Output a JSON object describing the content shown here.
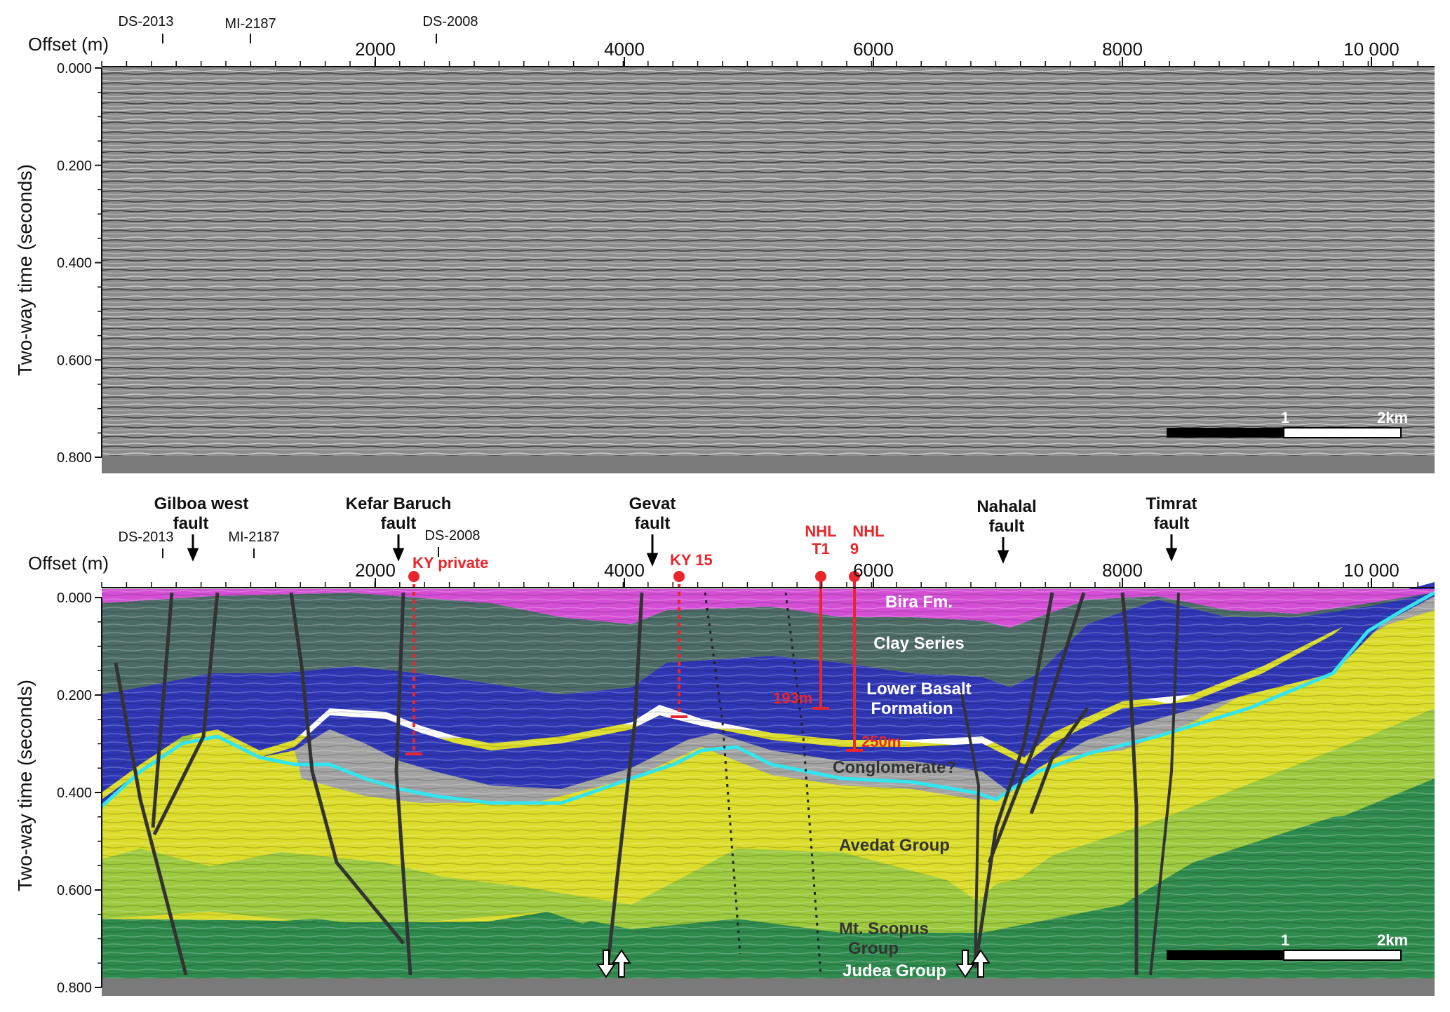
{
  "top_panel": {
    "xlabel": "Offset (m)",
    "ylabel": "Two-way time (seconds)",
    "x_ticks": [
      "2000",
      "4000",
      "6000",
      "8000",
      "10 000"
    ],
    "y_ticks": [
      "0.000",
      "0.200",
      "0.400",
      "0.600",
      "0.800"
    ],
    "line_markers": [
      "DS-2013",
      "MI-2187",
      "DS-2008"
    ],
    "scalebar": {
      "mid": "1",
      "end": "2km"
    }
  },
  "bottom_panel": {
    "xlabel": "Offset (m)",
    "ylabel": "Two-way time (seconds)",
    "x_ticks": [
      "2000",
      "4000",
      "6000",
      "8000",
      "10 000"
    ],
    "y_ticks": [
      "0.000",
      "0.200",
      "0.400",
      "0.600",
      "0.800"
    ],
    "line_markers": [
      "DS-2013",
      "MI-2187",
      "DS-2008"
    ],
    "faults": [
      {
        "line1": "Gilboa west",
        "line2": "fault"
      },
      {
        "line1": "Kefar Baruch",
        "line2": "fault"
      },
      {
        "line1": "Gevat",
        "line2": "fault"
      },
      {
        "line1": "Nahalal",
        "line2": "fault"
      },
      {
        "line1": "Timrat",
        "line2": "fault"
      }
    ],
    "wells": [
      {
        "line1": "KY private",
        "line2": ""
      },
      {
        "line1": "KY 15",
        "line2": ""
      },
      {
        "line1": "NHL",
        "line2": "T1"
      },
      {
        "line1": "NHL",
        "line2": "9"
      }
    ],
    "well_depths": [
      "193m",
      "250m"
    ],
    "formations": {
      "bira": "Bira Fm.",
      "clay": "Clay Series",
      "basalt1": "Lower Basalt",
      "basalt2": "Formation",
      "conglomerate": "Conglomerate?",
      "avedat": "Avedat Group",
      "scopus1": "Mt. Scopus",
      "scopus2": "Group",
      "judea": "Judea  Group"
    },
    "scalebar": {
      "mid": "1",
      "end": "2km"
    }
  },
  "colors": {
    "bira": "#d44fd6",
    "clay": "#4d6b66",
    "basalt": "#2e36b3",
    "conglomerate": "#a3a3a3",
    "avedat": "#dcdc2a",
    "scopus": "#9cc93e",
    "judea": "#2f8a4e",
    "seismic": "#8c8c8c",
    "horizon": "#33e5ee",
    "well": "#e8262b"
  }
}
